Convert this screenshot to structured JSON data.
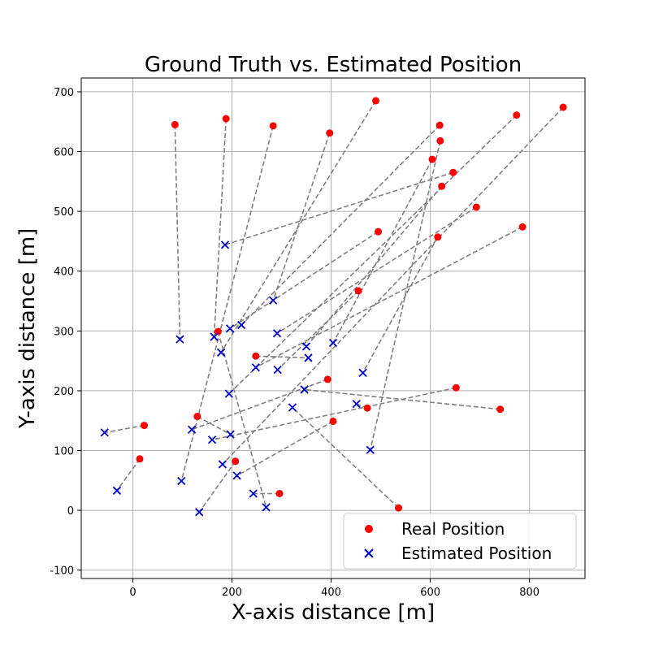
{
  "chart_data": {
    "type": "scatter",
    "title": "Ground Truth vs. Estimated Position",
    "xlabel": "X-axis distance [m]",
    "ylabel": "Y-axis distance [m]",
    "xlim": [
      -104,
      912
    ],
    "ylim": [
      -114,
      723
    ],
    "xticks": [
      0,
      200,
      400,
      600,
      800
    ],
    "yticks": [
      -100,
      0,
      100,
      200,
      300,
      400,
      500,
      600,
      700
    ],
    "grid": true,
    "legend_position": "lower-right",
    "colors": {
      "real": "#ff0000",
      "estimated": "#0000cd",
      "link": "#808080"
    },
    "series": [
      {
        "name": "Real Position",
        "marker": "circle",
        "color": "#ff0000"
      },
      {
        "name": "Estimated Position",
        "marker": "x",
        "color": "#0000cd"
      }
    ],
    "pairs": [
      {
        "real": [
          85,
          645
        ],
        "est": [
          95,
          286
        ]
      },
      {
        "real": [
          188,
          655
        ],
        "est": [
          164,
          290
        ]
      },
      {
        "real": [
          283,
          643
        ],
        "est": [
          98,
          49
        ]
      },
      {
        "real": [
          397,
          631
        ],
        "est": [
          283,
          351
        ]
      },
      {
        "real": [
          490,
          685
        ],
        "est": [
          178,
          264
        ]
      },
      {
        "real": [
          619,
          644
        ],
        "est": [
          219,
          310
        ]
      },
      {
        "real": [
          620,
          618
        ],
        "est": [
          479,
          101
        ]
      },
      {
        "real": [
          774,
          661
        ],
        "est": [
          194,
          195
        ]
      },
      {
        "real": [
          868,
          674
        ],
        "est": [
          181,
          77
        ]
      },
      {
        "real": [
          604,
          587
        ],
        "est": [
          404,
          280
        ]
      },
      {
        "real": [
          646,
          565
        ],
        "est": [
          186,
          444
        ]
      },
      {
        "real": [
          623,
          542
        ],
        "est": [
          350,
          274
        ]
      },
      {
        "real": [
          693,
          507
        ],
        "est": [
          291,
          296
        ]
      },
      {
        "real": [
          495,
          466
        ],
        "est": [
          196,
          304
        ]
      },
      {
        "real": [
          615,
          457
        ],
        "est": [
          464,
          230
        ]
      },
      {
        "real": [
          786,
          474
        ],
        "est": [
          248,
          239
        ]
      },
      {
        "real": [
          455,
          367
        ],
        "est": [
          292,
          235
        ]
      },
      {
        "real": [
          172,
          299
        ],
        "est": [
          269,
          5
        ]
      },
      {
        "real": [
          248,
          258
        ],
        "est": [
          354,
          255
        ]
      },
      {
        "real": [
          393,
          219
        ],
        "est": [
          119,
          135
        ]
      },
      {
        "real": [
          652,
          205
        ],
        "est": [
          160,
          118
        ]
      },
      {
        "real": [
          741,
          169
        ],
        "est": [
          346,
          202
        ]
      },
      {
        "real": [
          473,
          171
        ],
        "est": [
          451,
          178
        ]
      },
      {
        "real": [
          404,
          149
        ],
        "est": [
          210,
          58
        ]
      },
      {
        "real": [
          130,
          157
        ],
        "est": [
          197,
          127
        ]
      },
      {
        "real": [
          23,
          142
        ],
        "est": [
          -57,
          130
        ]
      },
      {
        "real": [
          14,
          86
        ],
        "est": [
          -32,
          33
        ]
      },
      {
        "real": [
          207,
          82
        ],
        "est": [
          134,
          -3
        ]
      },
      {
        "real": [
          296,
          28
        ],
        "est": [
          243,
          28
        ]
      },
      {
        "real": [
          536,
          4
        ],
        "est": [
          322,
          172
        ]
      }
    ]
  }
}
